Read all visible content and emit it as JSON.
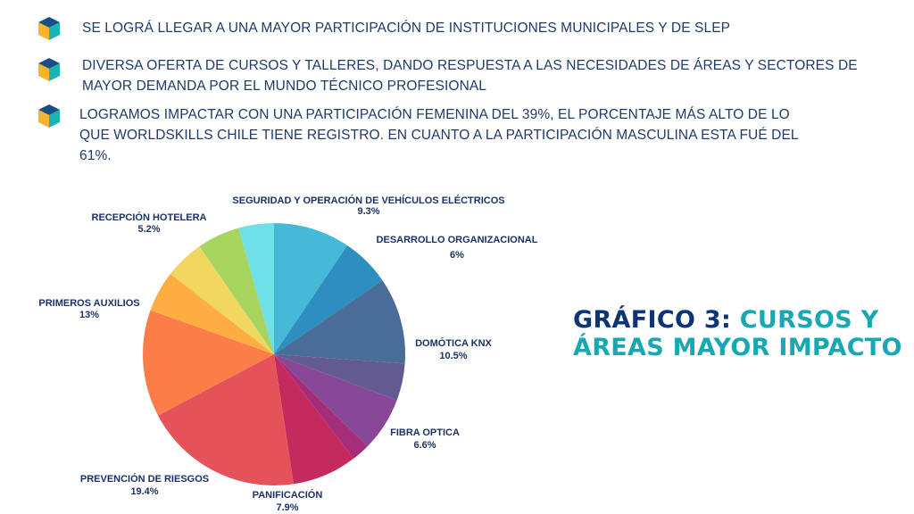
{
  "bullets": [
    {
      "text": "SE LOGRÁ LLEGAR A UNA MAYOR PARTICIPACIÓN DE INSTITUCIONES MUNICIPALES Y DE SLEP",
      "icon": "cube-icon"
    },
    {
      "text": "DIVERSA OFERTA DE CURSOS Y TALLERES, DANDO RESPUESTA A LAS NECESIDADES DE ÁREAS Y SECTORES DE MAYOR DEMANDA POR EL MUNDO TÉCNICO PROFESIONAL",
      "icon": "cube-icon"
    },
    {
      "text": "LOGRAMOS IMPACTAR CON UNA PARTICIPACIÓN FEMENINA DEL 39%, EL PORCENTAJE MÁS ALTO DE LO QUE WORLDSKILLS CHILE TIENE REGISTRO. EN CUANTO A LA PARTICIPACIÓN MASCULINA ESTA FUÉ DEL 61%.",
      "icon": "cube-icon"
    }
  ],
  "title": {
    "part1": "GRÁFICO 3: ",
    "part2": "CURSOS Y ÁREAS MAYOR IMPACTO"
  },
  "colors": {
    "title_dark": "#0d3575",
    "title_accent": "#17a8b3",
    "text": "#1f3a6b"
  },
  "chart_data": {
    "type": "pie",
    "title": "GRÁFICO 3: CURSOS Y ÁREAS MAYOR IMPACTO",
    "slices": [
      {
        "label": "SEGURIDAD Y OPERACIÓN DE VEHÍCULOS ELÉCTRICOS",
        "value": 9.3,
        "value_label": "9.3%",
        "color": "#46b8d8",
        "labeled": true
      },
      {
        "label": "DESARROLLO ORGANIZACIONAL",
        "value": 6,
        "value_label": "6%",
        "color": "#2e8ec0",
        "labeled": true
      },
      {
        "label": "DOMÓTICA KNX",
        "value": 10.5,
        "value_label": "10.5%",
        "color": "#4a6c98",
        "labeled": true
      },
      {
        "label": "",
        "value": 4.5,
        "value_label": "",
        "color": "#645a92",
        "labeled": false
      },
      {
        "label": "FIBRA OPTICA",
        "value": 6.6,
        "value_label": "6.6%",
        "color": "#874796",
        "labeled": true
      },
      {
        "label": "",
        "value": 2.2,
        "value_label": "",
        "color": "#a42e7a",
        "labeled": false
      },
      {
        "label": "PANIFICACIÓN",
        "value": 7.9,
        "value_label": "7.9%",
        "color": "#c42a5e",
        "labeled": true
      },
      {
        "label": "PREVENCIÓN DE RIESGOS",
        "value": 19.4,
        "value_label": "19.4%",
        "color": "#e6525a",
        "labeled": true
      },
      {
        "label": "PRIMEROS AUXILIOS",
        "value": 13,
        "value_label": "13%",
        "color": "#fb7d47",
        "labeled": true
      },
      {
        "label": "",
        "value": 5,
        "value_label": "",
        "color": "#fdad42",
        "labeled": false
      },
      {
        "label": "",
        "value": 4.8,
        "value_label": "",
        "color": "#f0d860",
        "labeled": false
      },
      {
        "label": "RECEPCIÓN HOTELERA",
        "value": 5.2,
        "value_label": "5.2%",
        "color": "#a7d55f",
        "labeled": true
      },
      {
        "label": "",
        "value": 4.3,
        "value_label": "",
        "color": "#6fe0e6",
        "labeled": false
      }
    ]
  }
}
